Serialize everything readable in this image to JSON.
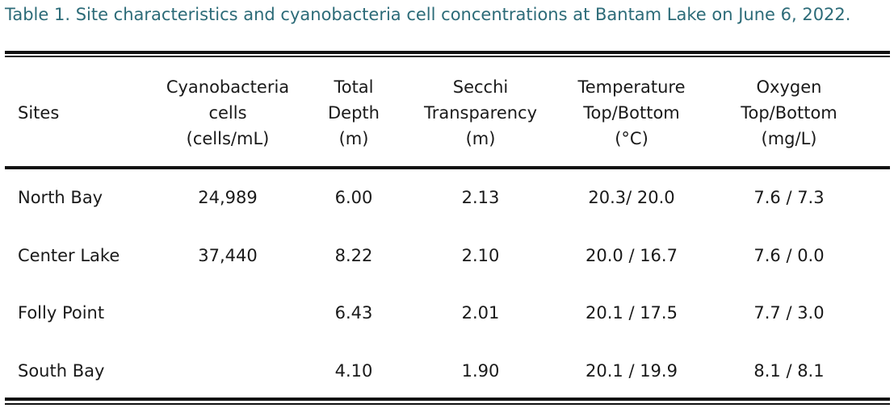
{
  "caption": "Table 1. Site characteristics and cyanobacteria cell concentrations at Bantam Lake on June 6, 2022.",
  "table": {
    "headers": [
      [
        "Sites"
      ],
      [
        "Cyanobacteria",
        "cells",
        "(cells/mL)"
      ],
      [
        "Total",
        "Depth",
        "(m)"
      ],
      [
        "Secchi",
        "Transparency",
        "(m)"
      ],
      [
        "Temperature",
        "Top/Bottom",
        "(°C)"
      ],
      [
        "Oxygen",
        "Top/Bottom",
        "(mg/L)"
      ]
    ],
    "rows": [
      [
        "North Bay",
        "24,989",
        "6.00",
        "2.13",
        "20.3/ 20.0",
        "7.6 / 7.3"
      ],
      [
        "Center Lake",
        "37,440",
        "8.22",
        "2.10",
        "20.0 / 16.7",
        "7.6 / 0.0"
      ],
      [
        "Folly Point",
        "",
        "6.43",
        "2.01",
        "20.1 / 17.5",
        "7.7 / 3.0"
      ],
      [
        "South Bay",
        "",
        "4.10",
        "1.90",
        "20.1 / 19.9",
        "8.1 / 8.1"
      ]
    ]
  }
}
